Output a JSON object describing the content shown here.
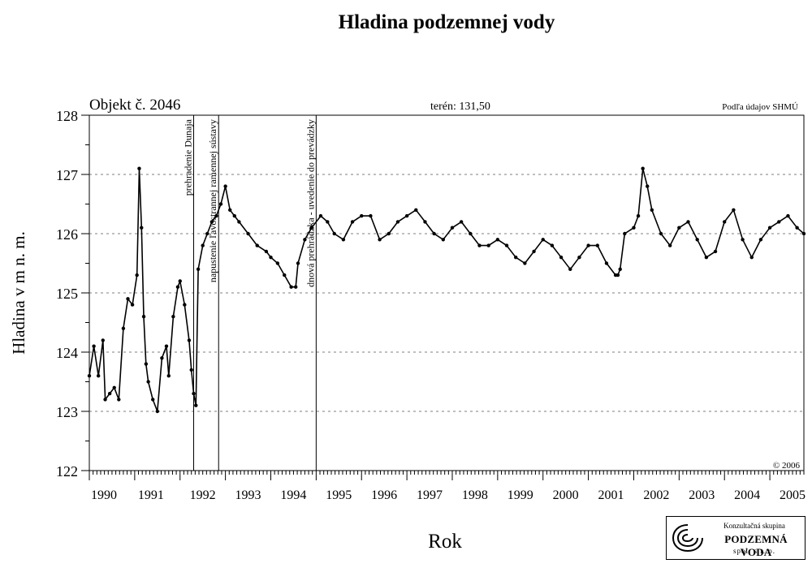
{
  "title": "Hladina podzemnej vody",
  "object_label": "Objekt č. 2046",
  "terrain_label": "terén: 131,50",
  "source_label": "Podľa údajov SHMÚ",
  "copyright": "© 2006",
  "logo": {
    "line1": "Konzultačná skupina",
    "line2": "PODZEMNÁ VODA",
    "line3": "spol. s r. o."
  },
  "colors": {
    "line": "#000000",
    "grid": "#555555",
    "background": "#ffffff"
  },
  "chart_data": {
    "type": "line",
    "title": "Hladina podzemnej vody",
    "xlabel": "Rok",
    "ylabel": "Hladina v m n. m.",
    "xlim": [
      1990.0,
      2005.75
    ],
    "ylim": [
      122,
      128
    ],
    "y_ticks": [
      122,
      123,
      124,
      125,
      126,
      127,
      128
    ],
    "x_tick_labels": [
      "1990",
      "1991",
      "1992",
      "1993",
      "1994",
      "1995",
      "1996",
      "1997",
      "1998",
      "1999",
      "2000",
      "2001",
      "2002",
      "2003",
      "2004",
      "2005"
    ],
    "grid": "dashed horizontal at each integer level",
    "events": [
      {
        "x": 1992.3,
        "label": "prehradenie Dunaja"
      },
      {
        "x": 1992.85,
        "label": "napustenie ľavostrannej ramennej sústavy"
      },
      {
        "x": 1995.0,
        "label": "dnová prehrádzka - uvedenie do prevádzky"
      }
    ],
    "series": [
      {
        "x": [
          1990.0,
          1990.1,
          1990.2,
          1990.3,
          1990.35,
          1990.45,
          1990.55,
          1990.65,
          1990.75,
          1990.85,
          1990.95,
          1991.05,
          1991.1,
          1991.15,
          1991.2,
          1991.25,
          1991.3,
          1991.4,
          1991.5,
          1991.6,
          1991.7,
          1991.75,
          1991.85,
          1991.95,
          1992.0,
          1992.1,
          1992.2,
          1992.25,
          1992.3,
          1992.35,
          1992.4,
          1992.5,
          1992.6,
          1992.7,
          1992.8,
          1992.9,
          1993.0,
          1993.1,
          1993.2,
          1993.3,
          1993.5,
          1993.7,
          1993.9,
          1994.0,
          1994.15,
          1994.3,
          1994.45,
          1994.55,
          1994.6,
          1994.75,
          1994.9,
          1995.1,
          1995.25,
          1995.4,
          1995.6,
          1995.8,
          1996.0,
          1996.2,
          1996.4,
          1996.6,
          1996.8,
          1997.0,
          1997.2,
          1997.4,
          1997.6,
          1997.8,
          1998.0,
          1998.2,
          1998.4,
          1998.6,
          1998.8,
          1999.0,
          1999.2,
          1999.4,
          1999.6,
          1999.8,
          2000.0,
          2000.2,
          2000.4,
          2000.6,
          2000.8,
          2001.0,
          2001.2,
          2001.4,
          2001.6,
          2001.65,
          2001.7,
          2001.8,
          2002.0,
          2002.1,
          2002.2,
          2002.3,
          2002.4,
          2002.6,
          2002.8,
          2003.0,
          2003.2,
          2003.4,
          2003.6,
          2003.8,
          2004.0,
          2004.2,
          2004.4,
          2004.6,
          2004.8,
          2005.0,
          2005.2,
          2005.4,
          2005.6,
          2005.75
        ],
        "y": [
          123.6,
          124.1,
          123.6,
          124.2,
          123.2,
          123.3,
          123.4,
          123.2,
          124.4,
          124.9,
          124.8,
          125.3,
          127.1,
          126.1,
          124.6,
          123.8,
          123.5,
          123.2,
          123.0,
          123.9,
          124.1,
          123.6,
          124.6,
          125.1,
          125.2,
          124.8,
          124.2,
          123.7,
          123.3,
          123.1,
          125.4,
          125.8,
          126.0,
          126.2,
          126.3,
          126.5,
          126.8,
          126.4,
          126.3,
          126.2,
          126.0,
          125.8,
          125.7,
          125.6,
          125.5,
          125.3,
          125.1,
          125.1,
          125.5,
          125.9,
          126.1,
          126.3,
          126.2,
          126.0,
          125.9,
          126.2,
          126.3,
          126.3,
          125.9,
          126.0,
          126.2,
          126.3,
          126.4,
          126.2,
          126.0,
          125.9,
          126.1,
          126.2,
          126.0,
          125.8,
          125.8,
          125.9,
          125.8,
          125.6,
          125.5,
          125.7,
          125.9,
          125.8,
          125.6,
          125.4,
          125.6,
          125.8,
          125.8,
          125.5,
          125.3,
          125.3,
          125.4,
          126.0,
          126.1,
          126.3,
          127.1,
          126.8,
          126.4,
          126.0,
          125.8,
          126.1,
          126.2,
          125.9,
          125.6,
          125.7,
          126.2,
          126.4,
          125.9,
          125.6,
          125.9,
          126.1,
          126.2,
          126.3,
          126.1,
          126.0
        ]
      }
    ]
  }
}
